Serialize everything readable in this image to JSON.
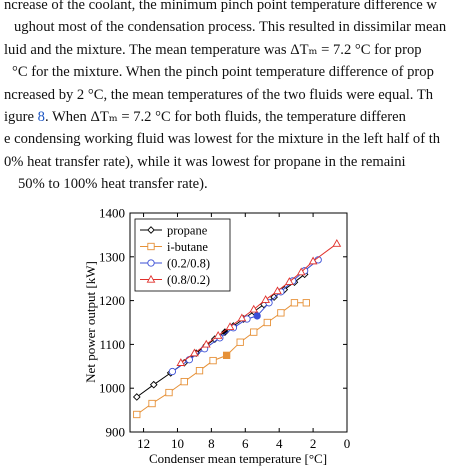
{
  "paragraph": {
    "lines": [
      {
        "text": "ncrease of the coolant, the minimum pinch point temperature difference w"
      },
      {
        "text": "ughout most of the condensation process. This resulted in dissimilar mean"
      },
      {
        "text": "luid and the mixture. The mean temperature was ΔTₘ = 7.2 °C for prop"
      },
      {
        "text": "°C for the mixture. When the pinch point temperature difference of prop"
      },
      {
        "text": "ncreased by 2 °C, the mean temperatures of the two fluids were equal. Th"
      },
      {
        "pre": "igure ",
        "ref": "8",
        "post": ". When ΔTₘ = 7.2 °C for both fluids, the temperature differen"
      },
      {
        "text": "e condensing working fluid was lowest for the mixture in the left half of th"
      },
      {
        "text": "0% heat transfer rate), while it was lowest for propane in the remaini"
      },
      {
        "text": "50% to 100% heat transfer rate)."
      }
    ]
  },
  "chart_data": {
    "type": "line",
    "xlabel": "Condenser mean temperature [°C]",
    "ylabel": "Net power output [kW]",
    "xlim": [
      12.8,
      0
    ],
    "ylim": [
      900,
      1400
    ],
    "xticks": [
      12,
      10,
      8,
      6,
      4,
      2,
      0
    ],
    "yticks": [
      900,
      1000,
      1100,
      1200,
      1300,
      1400
    ],
    "grid": false,
    "legend_position": "top-left",
    "series": [
      {
        "name": "propane",
        "color": "#000000",
        "marker": "diamond",
        "x": [
          12.4,
          11.4,
          10.4,
          9.6,
          8.9,
          8.3,
          7.8,
          7.2,
          6.7,
          6.1,
          5.5,
          4.9,
          4.3,
          3.7,
          3.1,
          2.5
        ],
        "y": [
          980,
          1008,
          1035,
          1058,
          1080,
          1098,
          1112,
          1128,
          1142,
          1158,
          1175,
          1191,
          1208,
          1225,
          1242,
          1260
        ],
        "highlight_index": 7
      },
      {
        "name": "i-butane",
        "color": "#e69138",
        "marker": "square",
        "x": [
          12.4,
          11.5,
          10.5,
          9.6,
          8.7,
          7.9,
          7.1,
          6.3,
          5.5,
          4.7,
          3.9,
          3.1,
          2.4
        ],
        "y": [
          940,
          965,
          990,
          1015,
          1040,
          1063,
          1075,
          1105,
          1128,
          1150,
          1172,
          1195,
          1195
        ],
        "highlight_index": 6
      },
      {
        "name": "(0.2/0.8)",
        "color": "#3b4fd6",
        "marker": "circle",
        "x": [
          10.3,
          9.3,
          8.4,
          7.5,
          6.7,
          5.9,
          5.3,
          4.6,
          3.9,
          3.2,
          2.5,
          1.7
        ],
        "y": [
          1038,
          1065,
          1090,
          1115,
          1138,
          1158,
          1165,
          1195,
          1220,
          1245,
          1268,
          1293
        ],
        "highlight_index": 6
      },
      {
        "name": "(0.8/0.2)",
        "color": "#e0302b",
        "marker": "triangle",
        "x": [
          9.8,
          9.0,
          8.3,
          7.6,
          6.9,
          6.2,
          5.5,
          4.8,
          4.1,
          3.4,
          2.7,
          2.0,
          0.6
        ],
        "y": [
          1058,
          1080,
          1100,
          1120,
          1140,
          1160,
          1180,
          1202,
          1222,
          1243,
          1265,
          1290,
          1330
        ]
      }
    ]
  }
}
